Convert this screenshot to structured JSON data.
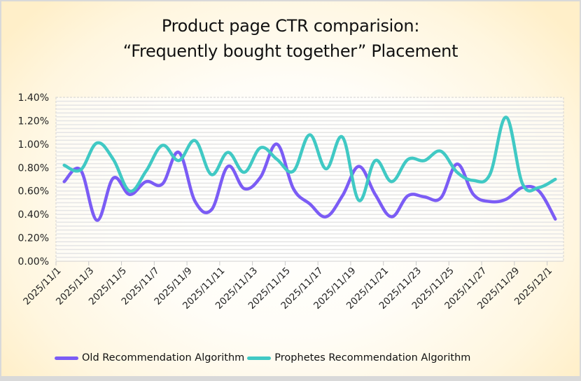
{
  "chart_data": {
    "type": "line",
    "title_lines": [
      "Product page CTR comparision:",
      "“Frequently bought together”  Placement"
    ],
    "xlabel": "",
    "ylabel": "",
    "ylim": [
      0,
      1.4
    ],
    "y_ticks": [
      "0.00%",
      "0.20%",
      "0.40%",
      "0.60%",
      "0.80%",
      "1.00%",
      "1.20%",
      "1.40%"
    ],
    "y_tick_values": [
      0,
      0.2,
      0.4,
      0.6,
      0.8,
      1.0,
      1.2,
      1.4
    ],
    "x": [
      "2025/11/1",
      "2025/11/2",
      "2025/11/3",
      "2025/11/4",
      "2025/11/5",
      "2025/11/6",
      "2025/11/7",
      "2025/11/8",
      "2025/11/9",
      "2025/11/10",
      "2025/11/11",
      "2025/11/12",
      "2025/11/13",
      "2025/11/14",
      "2025/11/15",
      "2025/11/16",
      "2025/11/17",
      "2025/11/18",
      "2025/11/19",
      "2025/11/20",
      "2025/11/21",
      "2025/11/22",
      "2025/11/23",
      "2025/11/24",
      "2025/11/25",
      "2025/11/26",
      "2025/11/27",
      "2025/11/28",
      "2025/11/29",
      "2025/11/30",
      "2025/12/1"
    ],
    "x_tick_labels": [
      "2025/11/1",
      "2025/11/3",
      "2025/11/5",
      "2025/11/7",
      "2025/11/9",
      "2025/11/11",
      "2025/11/13",
      "2025/11/15",
      "2025/11/17",
      "2025/11/19",
      "2025/11/21",
      "2025/11/23",
      "2025/11/25",
      "2025/11/27",
      "2025/11/29",
      "2025/12/1"
    ],
    "unit": "%",
    "grid": "horizontal minor",
    "legend_position": "bottom",
    "smooth": true,
    "series": [
      {
        "name": "Old Recommendation Algorithm",
        "color": "#7b5cf5",
        "values": [
          0.68,
          0.78,
          0.35,
          0.71,
          0.57,
          0.68,
          0.66,
          0.93,
          0.51,
          0.44,
          0.81,
          0.62,
          0.72,
          1.0,
          0.62,
          0.49,
          0.38,
          0.56,
          0.81,
          0.57,
          0.38,
          0.56,
          0.55,
          0.54,
          0.83,
          0.57,
          0.51,
          0.53,
          0.63,
          0.6,
          0.36
        ]
      },
      {
        "name": "Prophetes Recommendation Algorithm",
        "color": "#40c9c4",
        "values": [
          0.82,
          0.78,
          1.01,
          0.87,
          0.6,
          0.77,
          0.99,
          0.86,
          1.03,
          0.74,
          0.93,
          0.76,
          0.97,
          0.87,
          0.77,
          1.08,
          0.79,
          1.06,
          0.52,
          0.86,
          0.68,
          0.87,
          0.86,
          0.94,
          0.76,
          0.69,
          0.74,
          1.23,
          0.66,
          0.63,
          0.7
        ]
      }
    ]
  }
}
